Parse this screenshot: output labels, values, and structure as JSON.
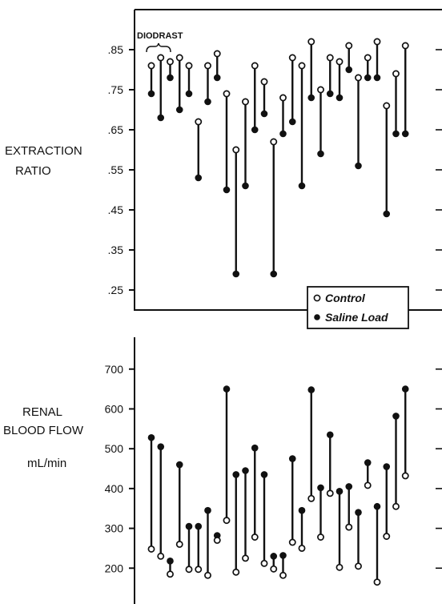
{
  "chart_data": [
    {
      "type": "scatter",
      "ylabel": [
        "EXTRACTION",
        "RATIO"
      ],
      "ylim": [
        0.2,
        0.95
      ],
      "yticks": [
        0.25,
        0.35,
        0.45,
        0.55,
        0.65,
        0.75,
        0.85
      ],
      "ytick_labels": [
        ".25",
        ".35",
        ".45",
        ".55",
        ".65",
        ".75",
        ".85"
      ],
      "annotation": "DIODRAST",
      "legend": {
        "position": "bottom-right",
        "entries": [
          "Control",
          "Saline Load"
        ]
      },
      "pairs": [
        {
          "control": 0.81,
          "saline": 0.74
        },
        {
          "control": 0.83,
          "saline": 0.68
        },
        {
          "control": 0.82,
          "saline": 0.78
        },
        {
          "control": 0.83,
          "saline": 0.7
        },
        {
          "control": 0.81,
          "saline": 0.74
        },
        {
          "control": 0.67,
          "saline": 0.53
        },
        {
          "control": 0.81,
          "saline": 0.72
        },
        {
          "control": 0.84,
          "saline": 0.78
        },
        {
          "control": 0.74,
          "saline": 0.5
        },
        {
          "control": 0.6,
          "saline": 0.29
        },
        {
          "control": 0.72,
          "saline": 0.51
        },
        {
          "control": 0.81,
          "saline": 0.65
        },
        {
          "control": 0.77,
          "saline": 0.69
        },
        {
          "control": 0.62,
          "saline": 0.29
        },
        {
          "control": 0.73,
          "saline": 0.64
        },
        {
          "control": 0.83,
          "saline": 0.67
        },
        {
          "control": 0.81,
          "saline": 0.51
        },
        {
          "control": 0.87,
          "saline": 0.73
        },
        {
          "control": 0.75,
          "saline": 0.59
        },
        {
          "control": 0.83,
          "saline": 0.74
        },
        {
          "control": 0.82,
          "saline": 0.73
        },
        {
          "control": 0.86,
          "saline": 0.8
        },
        {
          "control": 0.78,
          "saline": 0.56
        },
        {
          "control": 0.83,
          "saline": 0.78
        },
        {
          "control": 0.87,
          "saline": 0.78
        },
        {
          "control": 0.71,
          "saline": 0.44
        },
        {
          "control": 0.79,
          "saline": 0.64
        },
        {
          "control": 0.86,
          "saline": 0.64
        }
      ]
    },
    {
      "type": "scatter",
      "ylabel": [
        "RENAL",
        "BLOOD FLOW",
        "mL/min"
      ],
      "ylim": [
        110,
        780
      ],
      "yticks": [
        200,
        300,
        400,
        500,
        600,
        700
      ],
      "ytick_labels": [
        "200",
        "300",
        "400",
        "500",
        "600",
        "700"
      ],
      "pairs": [
        {
          "control": 248,
          "saline": 528
        },
        {
          "control": 230,
          "saline": 505
        },
        {
          "control": 185,
          "saline": 218
        },
        {
          "control": 260,
          "saline": 460
        },
        {
          "control": 197,
          "saline": 305
        },
        {
          "control": 197,
          "saline": 305
        },
        {
          "control": 182,
          "saline": 345
        },
        {
          "control": 270,
          "saline": 282
        },
        {
          "control": 320,
          "saline": 650
        },
        {
          "control": 190,
          "saline": 435
        },
        {
          "control": 225,
          "saline": 445
        },
        {
          "control": 278,
          "saline": 502
        },
        {
          "control": 212,
          "saline": 435
        },
        {
          "control": 198,
          "saline": 230
        },
        {
          "control": 182,
          "saline": 232
        },
        {
          "control": 265,
          "saline": 475
        },
        {
          "control": 250,
          "saline": 345
        },
        {
          "control": 375,
          "saline": 648
        },
        {
          "control": 278,
          "saline": 402
        },
        {
          "control": 388,
          "saline": 535
        },
        {
          "control": 202,
          "saline": 393
        },
        {
          "control": 303,
          "saline": 405
        },
        {
          "control": 205,
          "saline": 340
        },
        {
          "control": 408,
          "saline": 465
        },
        {
          "control": 165,
          "saline": 355
        },
        {
          "control": 280,
          "saline": 455
        },
        {
          "control": 355,
          "saline": 582
        },
        {
          "control": 432,
          "saline": 650
        }
      ]
    }
  ]
}
